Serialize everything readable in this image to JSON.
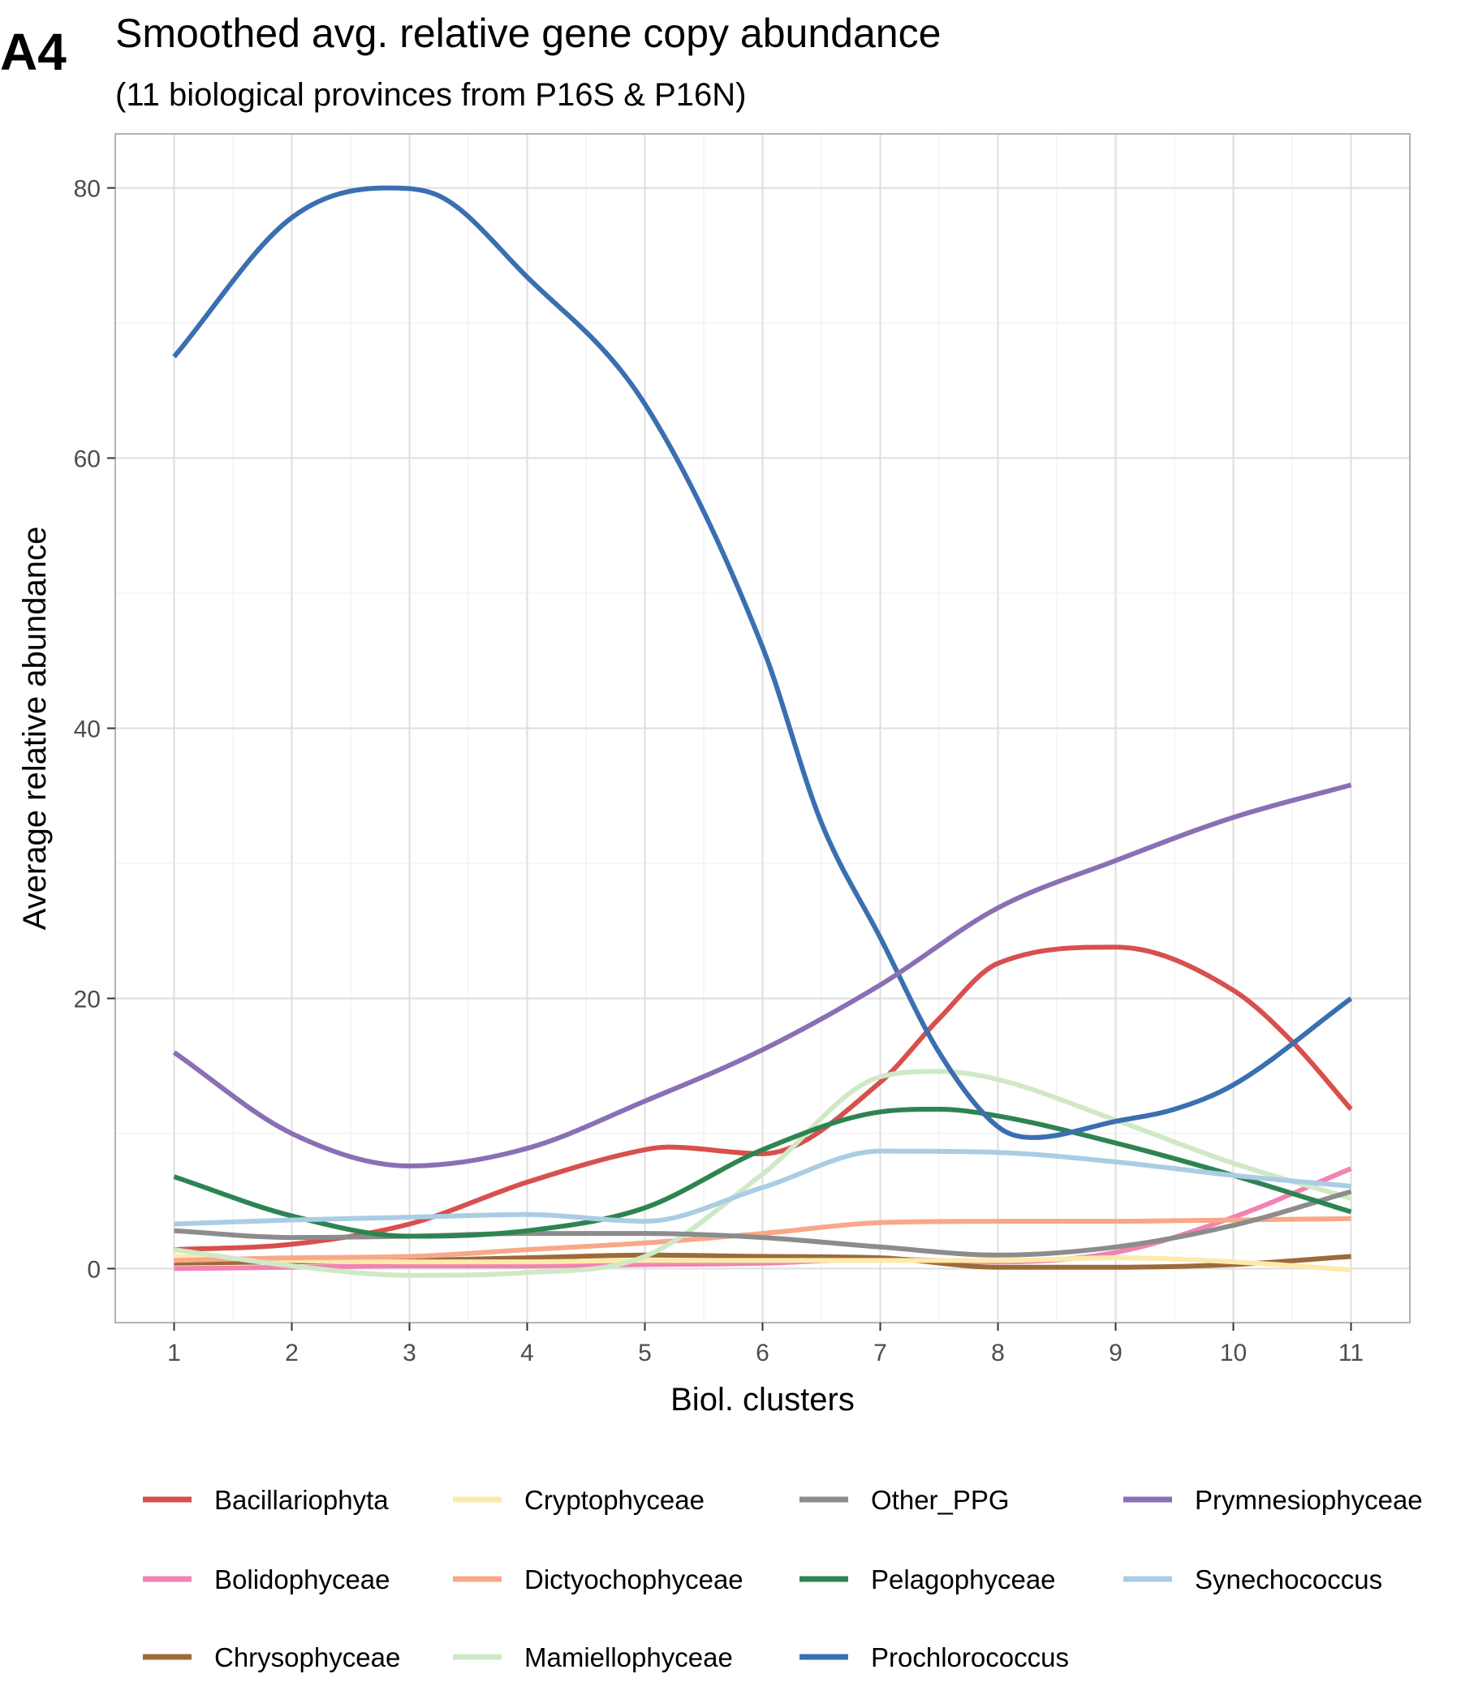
{
  "chart_data": {
    "type": "line",
    "panel_label": "A4",
    "title": "Smoothed avg. relative gene copy abundance",
    "subtitle": "(11 biological provinces from P16S & P16N)",
    "xlabel": "Biol. clusters",
    "ylabel": "Average relative abundance",
    "x": [
      1,
      2,
      3,
      4,
      5,
      6,
      7,
      8,
      9,
      10,
      11
    ],
    "x_ticks": [
      1,
      2,
      3,
      4,
      5,
      6,
      7,
      8,
      9,
      10,
      11
    ],
    "y_ticks": [
      0,
      20,
      40,
      60,
      80
    ],
    "xlim": [
      0.5,
      11.5
    ],
    "ylim": [
      -4,
      84
    ],
    "grid": true,
    "legend_position": "bottom",
    "series": [
      {
        "name": "Bacillariophyta",
        "color": "#d7504d",
        "points": [
          [
            1,
            1.4
          ],
          [
            2,
            1.8
          ],
          [
            3,
            3.3
          ],
          [
            4,
            6.4
          ],
          [
            5,
            8.8
          ],
          [
            5.2,
            9.0
          ],
          [
            6,
            8.5
          ],
          [
            7,
            13.8
          ],
          [
            7.5,
            18.5
          ],
          [
            8,
            22.6
          ],
          [
            9,
            23.8
          ],
          [
            10,
            20.6
          ],
          [
            10.5,
            16.8
          ],
          [
            11,
            11.8
          ]
        ]
      },
      {
        "name": "Bolidophyceae",
        "color": "#f283b2",
        "points": [
          [
            1,
            0.0
          ],
          [
            2,
            0.1
          ],
          [
            3,
            0.2
          ],
          [
            4,
            0.2
          ],
          [
            5,
            0.3
          ],
          [
            6,
            0.4
          ],
          [
            7,
            0.7
          ],
          [
            8,
            0.5
          ],
          [
            9,
            1.2
          ],
          [
            10,
            3.8
          ],
          [
            11,
            7.4
          ]
        ]
      },
      {
        "name": "Chrysophyceae",
        "color": "#9c6b3a",
        "points": [
          [
            1,
            0.4
          ],
          [
            2,
            0.5
          ],
          [
            3,
            0.6
          ],
          [
            4,
            0.8
          ],
          [
            5,
            1.0
          ],
          [
            6,
            0.9
          ],
          [
            7,
            0.8
          ],
          [
            8,
            0.1
          ],
          [
            9,
            0.1
          ],
          [
            10,
            0.3
          ],
          [
            11,
            0.9
          ]
        ]
      },
      {
        "name": "Cryptophyceae",
        "color": "#fcebac",
        "points": [
          [
            1,
            0.9
          ],
          [
            2,
            0.6
          ],
          [
            3,
            0.5
          ],
          [
            4,
            0.5
          ],
          [
            5,
            0.6
          ],
          [
            6,
            0.6
          ],
          [
            7,
            0.6
          ],
          [
            8,
            0.6
          ],
          [
            9,
            0.8
          ],
          [
            10,
            0.5
          ],
          [
            11,
            -0.1
          ]
        ]
      },
      {
        "name": "Dictyochophyceae",
        "color": "#f8a888",
        "points": [
          [
            1,
            0.6
          ],
          [
            2,
            0.8
          ],
          [
            3,
            0.9
          ],
          [
            4,
            1.4
          ],
          [
            5,
            1.9
          ],
          [
            6,
            2.6
          ],
          [
            7,
            3.4
          ],
          [
            8,
            3.5
          ],
          [
            9,
            3.5
          ],
          [
            10,
            3.6
          ],
          [
            11,
            3.7
          ]
        ]
      },
      {
        "name": "Mamiellophyceae",
        "color": "#cfe9c6",
        "points": [
          [
            1,
            1.4
          ],
          [
            2,
            0.2
          ],
          [
            3,
            -0.5
          ],
          [
            4,
            -0.3
          ],
          [
            5,
            0.9
          ],
          [
            6,
            7.0
          ],
          [
            7,
            14.2
          ],
          [
            7.5,
            14.6
          ],
          [
            8,
            14.0
          ],
          [
            9,
            11.0
          ],
          [
            10,
            7.8
          ],
          [
            11,
            5.2
          ]
        ]
      },
      {
        "name": "Other_PPG",
        "color": "#8c8c8c",
        "points": [
          [
            1,
            2.8
          ],
          [
            2,
            2.3
          ],
          [
            3,
            2.4
          ],
          [
            4,
            2.6
          ],
          [
            5,
            2.6
          ],
          [
            6,
            2.3
          ],
          [
            7,
            1.6
          ],
          [
            8,
            1.0
          ],
          [
            9,
            1.6
          ],
          [
            10,
            3.2
          ],
          [
            11,
            5.7
          ]
        ]
      },
      {
        "name": "Pelagophyceae",
        "color": "#2e8451",
        "points": [
          [
            1,
            6.8
          ],
          [
            2,
            3.9
          ],
          [
            3,
            2.4
          ],
          [
            4,
            2.8
          ],
          [
            5,
            4.5
          ],
          [
            6,
            8.8
          ],
          [
            7,
            11.6
          ],
          [
            7.5,
            11.8
          ],
          [
            8,
            11.3
          ],
          [
            9,
            9.3
          ],
          [
            10,
            6.9
          ],
          [
            11,
            4.2
          ]
        ]
      },
      {
        "name": "Prochlorococcus",
        "color": "#3a6fb0",
        "points": [
          [
            1,
            67.5
          ],
          [
            2,
            77.8
          ],
          [
            2.8,
            80.0
          ],
          [
            3.2,
            79.6
          ],
          [
            4,
            73.4
          ],
          [
            5,
            64.0
          ],
          [
            6,
            46.0
          ],
          [
            6.5,
            33.0
          ],
          [
            7,
            24.5
          ],
          [
            7.5,
            16.0
          ],
          [
            8,
            10.5
          ],
          [
            8.3,
            9.7
          ],
          [
            9,
            10.9
          ],
          [
            9.5,
            11.8
          ],
          [
            10,
            13.6
          ],
          [
            11,
            20.0
          ]
        ]
      },
      {
        "name": "Prymnesiophyceae",
        "color": "#8a6fb5",
        "points": [
          [
            1,
            16.0
          ],
          [
            2,
            10.0
          ],
          [
            3,
            7.6
          ],
          [
            4,
            8.9
          ],
          [
            5,
            12.4
          ],
          [
            6,
            16.2
          ],
          [
            7,
            21.0
          ],
          [
            8,
            26.7
          ],
          [
            9,
            30.2
          ],
          [
            10,
            33.4
          ],
          [
            11,
            35.8
          ]
        ]
      },
      {
        "name": "Synechococcus",
        "color": "#a9cde4",
        "points": [
          [
            1,
            3.3
          ],
          [
            2,
            3.6
          ],
          [
            3,
            3.8
          ],
          [
            4,
            4.0
          ],
          [
            5,
            3.5
          ],
          [
            6,
            6.0
          ],
          [
            7,
            8.7
          ],
          [
            8,
            8.6
          ],
          [
            9,
            7.9
          ],
          [
            10,
            6.9
          ],
          [
            11,
            6.1
          ]
        ]
      }
    ],
    "legend": [
      [
        "Bacillariophyta",
        "Cryptophyceae",
        "Other_PPG",
        "Prymnesiophyceae"
      ],
      [
        "Bolidophyceae",
        "Dictyochophyceae",
        "Pelagophyceae",
        "Synechococcus"
      ],
      [
        "Chrysophyceae",
        "Mamiellophyceae",
        "Prochlorococcus"
      ]
    ]
  }
}
